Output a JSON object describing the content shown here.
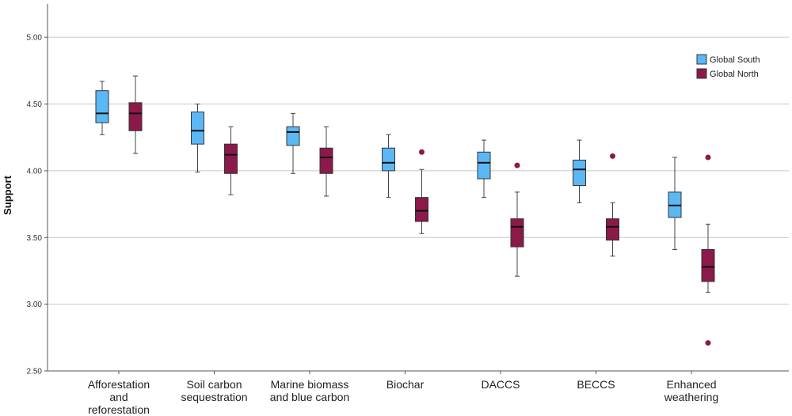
{
  "chart_data": {
    "type": "boxplot",
    "title": "",
    "xlabel": "",
    "ylabel": "Support",
    "ylim": [
      2.5,
      5.25
    ],
    "yticks": [
      "2.50",
      "3.00",
      "3.50",
      "4.00",
      "4.50",
      "5.00"
    ],
    "grid": true,
    "legend_position": "top-right",
    "categories": [
      [
        "Afforestation",
        "and",
        "reforestation"
      ],
      [
        "Soil carbon",
        "sequestration"
      ],
      [
        "Marine biomass",
        "and blue carbon"
      ],
      [
        "Biochar"
      ],
      [
        "DACCS"
      ],
      [
        "BECCS"
      ],
      [
        "Enhanced",
        "weathering"
      ]
    ],
    "series": [
      {
        "name": "Global South",
        "color": "#5bb8f5",
        "boxes": [
          {
            "min": 4.27,
            "q1": 4.36,
            "median": 4.43,
            "q3": 4.6,
            "max": 4.67,
            "outliers": []
          },
          {
            "min": 3.99,
            "q1": 4.2,
            "median": 4.3,
            "q3": 4.44,
            "max": 4.5,
            "outliers": []
          },
          {
            "min": 3.98,
            "q1": 4.19,
            "median": 4.29,
            "q3": 4.33,
            "max": 4.43,
            "outliers": []
          },
          {
            "min": 3.8,
            "q1": 4.0,
            "median": 4.06,
            "q3": 4.17,
            "max": 4.27,
            "outliers": []
          },
          {
            "min": 3.8,
            "q1": 3.94,
            "median": 4.06,
            "q3": 4.14,
            "max": 4.23,
            "outliers": []
          },
          {
            "min": 3.76,
            "q1": 3.89,
            "median": 4.01,
            "q3": 4.08,
            "max": 4.23,
            "outliers": []
          },
          {
            "min": 3.41,
            "q1": 3.65,
            "median": 3.74,
            "q3": 3.84,
            "max": 4.1,
            "outliers": []
          }
        ]
      },
      {
        "name": "Global North",
        "color": "#8b1a4a",
        "boxes": [
          {
            "min": 4.13,
            "q1": 4.3,
            "median": 4.43,
            "q3": 4.51,
            "max": 4.71,
            "outliers": []
          },
          {
            "min": 3.82,
            "q1": 3.98,
            "median": 4.12,
            "q3": 4.2,
            "max": 4.33,
            "outliers": []
          },
          {
            "min": 3.81,
            "q1": 3.98,
            "median": 4.1,
            "q3": 4.17,
            "max": 4.33,
            "outliers": []
          },
          {
            "min": 3.53,
            "q1": 3.62,
            "median": 3.7,
            "q3": 3.8,
            "max": 4.01,
            "outliers": [
              4.14
            ]
          },
          {
            "min": 3.21,
            "q1": 3.43,
            "median": 3.58,
            "q3": 3.64,
            "max": 3.84,
            "outliers": [
              4.04
            ]
          },
          {
            "min": 3.36,
            "q1": 3.48,
            "median": 3.58,
            "q3": 3.64,
            "max": 3.76,
            "outliers": [
              4.11
            ]
          },
          {
            "min": 3.09,
            "q1": 3.17,
            "median": 3.28,
            "q3": 3.41,
            "max": 3.6,
            "outliers": [
              4.1,
              2.71
            ]
          }
        ]
      }
    ]
  }
}
